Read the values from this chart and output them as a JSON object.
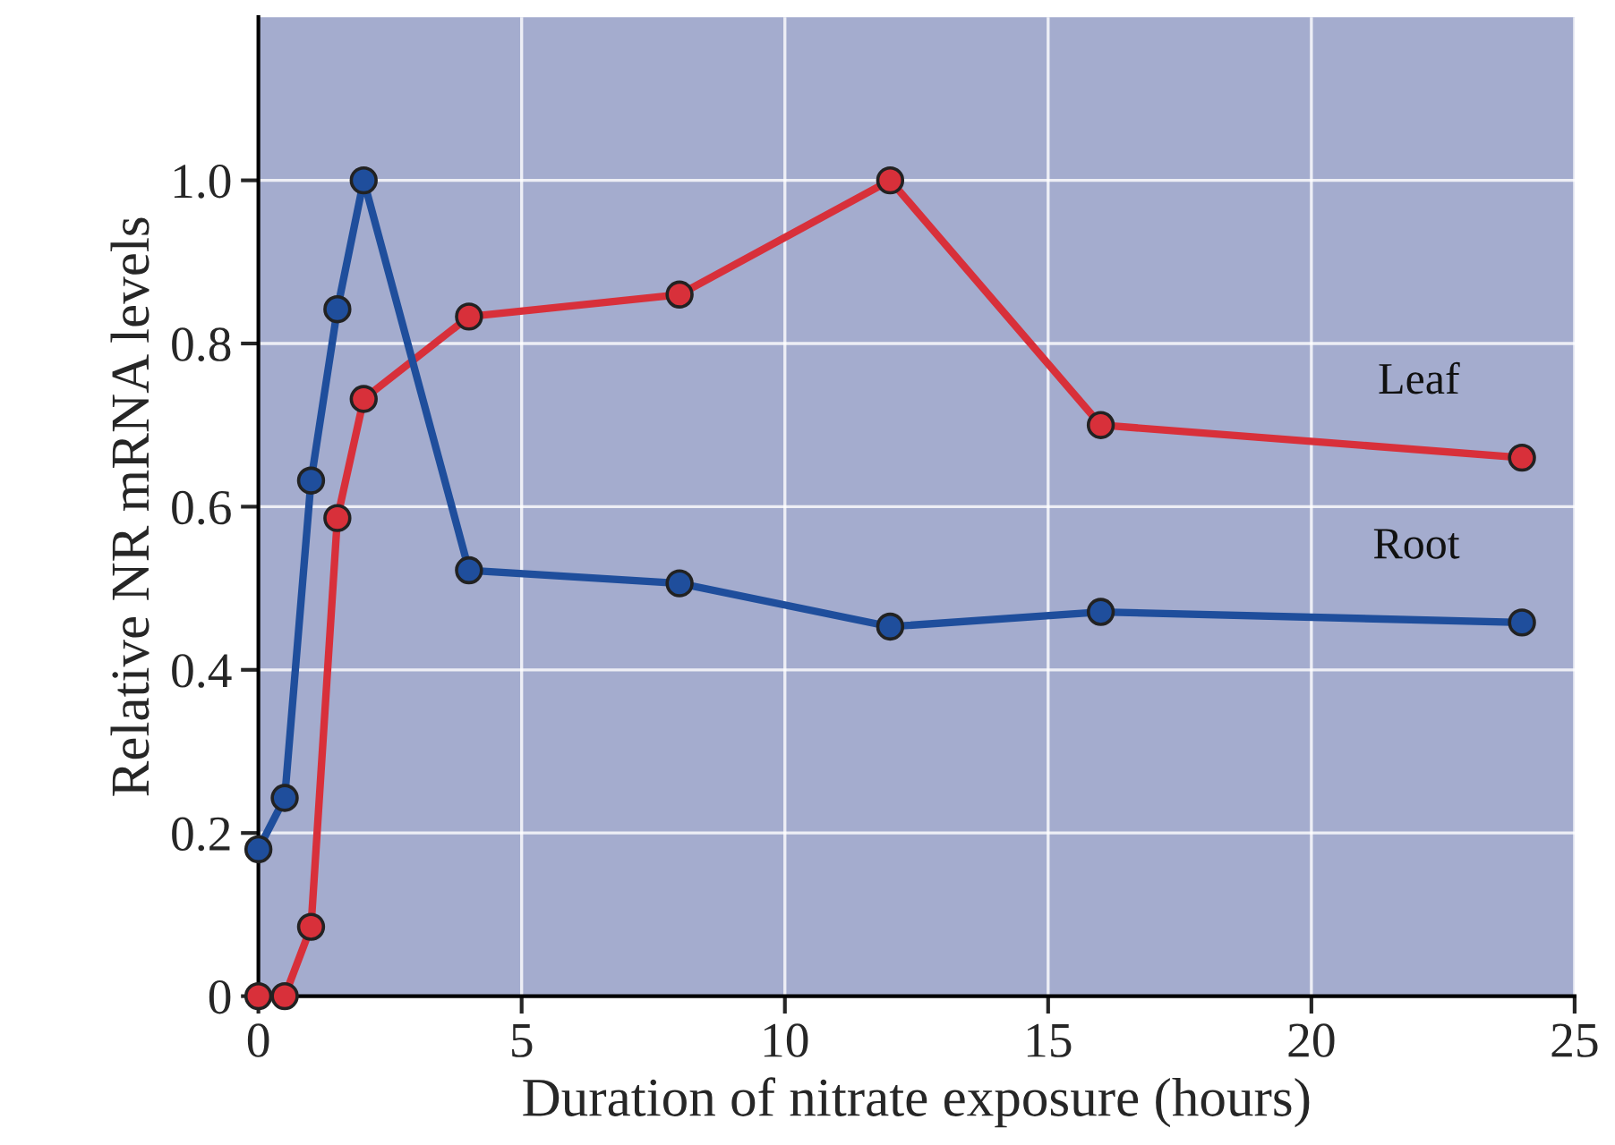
{
  "chart_data": {
    "type": "line",
    "xlabel": "Duration of nitrate exposure (hours)",
    "ylabel": "Relative NR mRNA levels",
    "xlim": [
      0,
      25
    ],
    "xticks": [
      0,
      5,
      10,
      15,
      20,
      25
    ],
    "ylim": [
      0,
      1.2
    ],
    "yticks": [
      0,
      0.2,
      0.4,
      0.6,
      0.8,
      {
        "value": 1.0,
        "label": "1.0"
      }
    ],
    "grid": true,
    "legend": false,
    "marker": "circle",
    "line_style": "solid",
    "series": [
      {
        "name": "Leaf",
        "color": "#d8303a",
        "x": [
          0,
          0.5,
          1,
          1.5,
          2,
          4,
          8,
          12,
          16,
          24
        ],
        "values": [
          0,
          0,
          0.085,
          0.586,
          0.732,
          0.833,
          0.86,
          1.0,
          0.7,
          0.66
        ]
      },
      {
        "name": "Root",
        "color": "#1f4e9c",
        "x": [
          0,
          0.5,
          1,
          1.5,
          2,
          4,
          8,
          12,
          16,
          24
        ],
        "values": [
          0.18,
          0.243,
          0.632,
          0.842,
          1.0,
          0.522,
          0.506,
          0.453,
          0.471,
          0.458
        ]
      }
    ]
  }
}
